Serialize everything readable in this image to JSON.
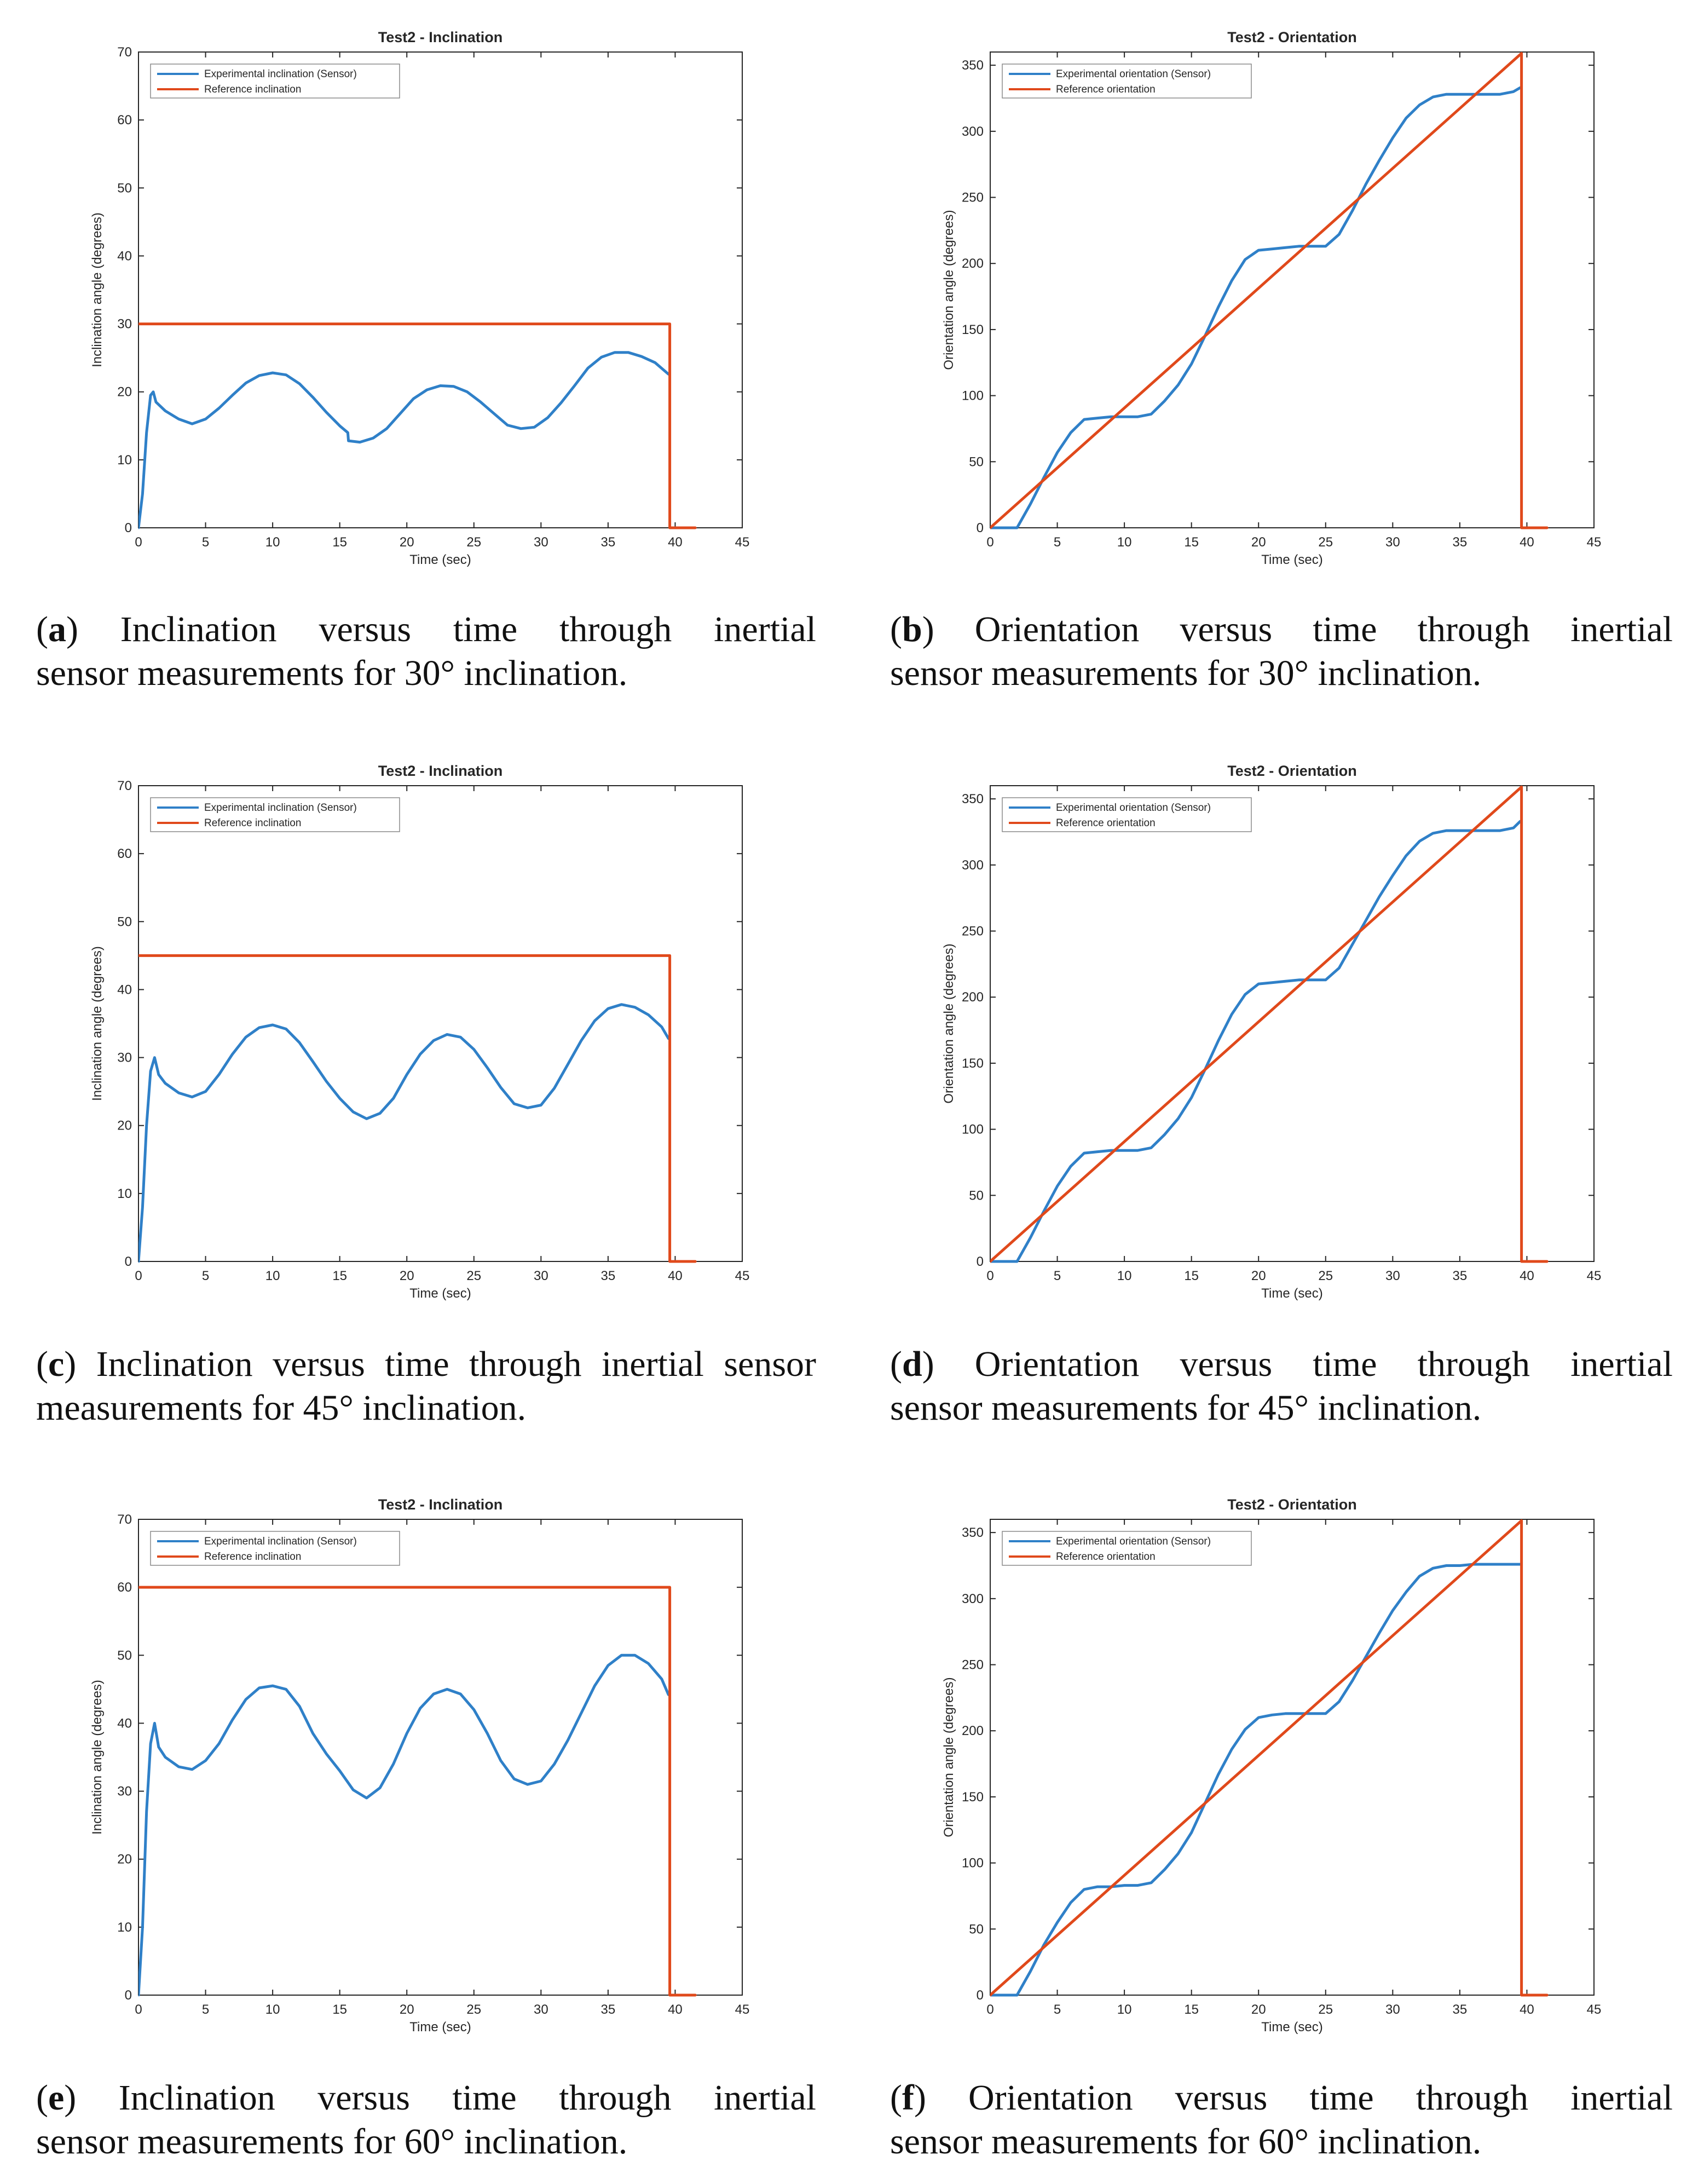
{
  "colors": {
    "experimental": "#2f80c8",
    "reference": "#e0491b",
    "axis": "#262626"
  },
  "panels": [
    {
      "caption": {
        "letter": "a",
        "line1": "Inclination versus time through inertial",
        "line2": "sensor measurements for 30° inclination."
      },
      "chart_data": {
        "type": "line",
        "title": "Test2 - Inclination",
        "xlabel": "Time (sec)",
        "ylabel": "Inclination angle (degrees)",
        "xlim": [
          0,
          45
        ],
        "ylim": [
          0,
          70
        ],
        "xticks": [
          0,
          5,
          10,
          15,
          20,
          25,
          30,
          35,
          40,
          45
        ],
        "yticks": [
          0,
          10,
          20,
          30,
          40,
          50,
          60,
          70
        ],
        "legend": "top-left",
        "series": [
          {
            "name": "Experimental inclination (Sensor)",
            "color_key": "experimental",
            "x": [
              0,
              0.3,
              0.6,
              0.9,
              1.1,
              1.3,
              2,
              3,
              4,
              5,
              6,
              7,
              8,
              9,
              10,
              11,
              12,
              13,
              14,
              15,
              15.6,
              15.65,
              16.5,
              17.5,
              18.5,
              19.5,
              20.5,
              21.5,
              22.5,
              23.5,
              24.5,
              25.5,
              26.5,
              27.5,
              28.5,
              29.5,
              30.5,
              31.5,
              32.5,
              33.5,
              34.5,
              35.5,
              36.5,
              37.5,
              38.5,
              39.5
            ],
            "y": [
              0,
              5,
              14,
              19.5,
              20,
              18.5,
              17.2,
              16,
              15.3,
              16,
              17.6,
              19.5,
              21.3,
              22.4,
              22.8,
              22.5,
              21.2,
              19.2,
              17,
              15,
              14,
              12.8,
              12.6,
              13.2,
              14.6,
              16.8,
              19,
              20.3,
              20.9,
              20.8,
              20,
              18.5,
              16.8,
              15.1,
              14.6,
              14.8,
              16.2,
              18.4,
              20.9,
              23.5,
              25.1,
              25.8,
              25.8,
              25.2,
              24.3,
              22.6
            ]
          },
          {
            "name": "Reference inclination",
            "color_key": "reference",
            "x": [
              0,
              39.6,
              39.6,
              41.5
            ],
            "y": [
              30,
              30,
              0,
              0
            ]
          }
        ]
      }
    },
    {
      "caption": {
        "letter": "b",
        "line1": "Orientation versus time through inertial",
        "line2": "sensor measurements for 30° inclination."
      },
      "chart_data": {
        "type": "line",
        "title": "Test2 - Orientation",
        "xlabel": "Time (sec)",
        "ylabel": "Orientation angle (degrees)",
        "xlim": [
          0,
          45
        ],
        "ylim": [
          0,
          360
        ],
        "xticks": [
          0,
          5,
          10,
          15,
          20,
          25,
          30,
          35,
          40,
          45
        ],
        "yticks": [
          0,
          50,
          100,
          150,
          200,
          250,
          300,
          350
        ],
        "legend": "top-left",
        "series": [
          {
            "name": "Experimental orientation (Sensor)",
            "color_key": "experimental",
            "x": [
              0,
              2,
              3,
              4,
              5,
              6,
              7,
              8,
              9,
              10,
              11,
              12,
              13,
              14,
              15,
              16,
              17,
              18,
              19,
              20,
              21,
              22,
              23,
              24,
              25,
              26,
              27,
              28,
              29,
              30,
              31,
              32,
              33,
              34,
              35,
              36,
              37,
              38,
              39,
              39.5
            ],
            "y": [
              0,
              0,
              18,
              38,
              57,
              72,
              82,
              83,
              84,
              84,
              84,
              86,
              96,
              108,
              124,
              145,
              167,
              187,
              203,
              210,
              211,
              212,
              213,
              213,
              213,
              222,
              240,
              260,
              278,
              295,
              310,
              320,
              326,
              328,
              328,
              328,
              328,
              328,
              330,
              333
            ]
          },
          {
            "name": "Reference orientation",
            "color_key": "reference",
            "x": [
              0,
              39.6,
              39.6,
              41.5
            ],
            "y": [
              0,
              359,
              0,
              0
            ]
          }
        ]
      }
    },
    {
      "caption": {
        "letter": "c",
        "line1": "Inclination versus time through inertial sensor",
        "line2": "measurements for 45° inclination."
      },
      "chart_data": {
        "type": "line",
        "title": "Test2 - Inclination",
        "xlabel": "Time (sec)",
        "ylabel": "Inclination angle (degrees)",
        "xlim": [
          0,
          45
        ],
        "ylim": [
          0,
          70
        ],
        "xticks": [
          0,
          5,
          10,
          15,
          20,
          25,
          30,
          35,
          40,
          45
        ],
        "yticks": [
          0,
          10,
          20,
          30,
          40,
          50,
          60,
          70
        ],
        "legend": "top-left",
        "series": [
          {
            "name": "Experimental inclination (Sensor)",
            "color_key": "experimental",
            "x": [
              0,
              0.3,
              0.6,
              0.9,
              1.2,
              1.5,
              2,
              3,
              4,
              5,
              6,
              7,
              8,
              9,
              10,
              11,
              12,
              13,
              14,
              15,
              16,
              17,
              18,
              19,
              20,
              21,
              22,
              23,
              24,
              25,
              26,
              27,
              28,
              29,
              30,
              31,
              32,
              33,
              34,
              35,
              36,
              37,
              38,
              39,
              39.5
            ],
            "y": [
              0,
              8,
              20,
              28,
              30,
              27.5,
              26.2,
              24.8,
              24.2,
              25,
              27.5,
              30.5,
              33,
              34.4,
              34.8,
              34.2,
              32.2,
              29.4,
              26.5,
              24,
              22,
              21,
              21.8,
              24,
              27.5,
              30.5,
              32.5,
              33.4,
              33,
              31.2,
              28.5,
              25.6,
              23.2,
              22.6,
              23,
              25.5,
              29,
              32.5,
              35.4,
              37.2,
              37.8,
              37.4,
              36.3,
              34.5,
              32.8
            ]
          },
          {
            "name": "Reference inclination",
            "color_key": "reference",
            "x": [
              0,
              39.6,
              39.6,
              41.5
            ],
            "y": [
              45,
              45,
              0,
              0
            ]
          }
        ]
      }
    },
    {
      "caption": {
        "letter": "d",
        "line1": "Orientation versus time through inertial",
        "line2": "sensor measurements for 45° inclination."
      },
      "chart_data": {
        "type": "line",
        "title": "Test2 - Orientation",
        "xlabel": "Time (sec)",
        "ylabel": "Orientation angle (degrees)",
        "xlim": [
          0,
          45
        ],
        "ylim": [
          0,
          360
        ],
        "xticks": [
          0,
          5,
          10,
          15,
          20,
          25,
          30,
          35,
          40,
          45
        ],
        "yticks": [
          0,
          50,
          100,
          150,
          200,
          250,
          300,
          350
        ],
        "legend": "top-left",
        "series": [
          {
            "name": "Experimental orientation (Sensor)",
            "color_key": "experimental",
            "x": [
              0,
              2,
              3,
              4,
              5,
              6,
              7,
              8,
              9,
              10,
              11,
              12,
              13,
              14,
              15,
              16,
              17,
              18,
              19,
              20,
              21,
              22,
              23,
              24,
              25,
              26,
              27,
              28,
              29,
              30,
              31,
              32,
              33,
              34,
              35,
              36,
              37,
              38,
              39,
              39.5
            ],
            "y": [
              0,
              0,
              18,
              38,
              57,
              72,
              82,
              83,
              84,
              84,
              84,
              86,
              96,
              108,
              124,
              145,
              167,
              187,
              202,
              210,
              211,
              212,
              213,
              213,
              213,
              222,
              240,
              258,
              276,
              292,
              307,
              318,
              324,
              326,
              326,
              326,
              326,
              326,
              328,
              333
            ]
          },
          {
            "name": "Reference orientation",
            "color_key": "reference",
            "x": [
              0,
              39.6,
              39.6,
              41.5
            ],
            "y": [
              0,
              359,
              0,
              0
            ]
          }
        ]
      }
    },
    {
      "caption": {
        "letter": "e",
        "line1": "Inclination versus time through inertial",
        "line2": "sensor measurements for 60° inclination."
      },
      "chart_data": {
        "type": "line",
        "title": "Test2 - Inclination",
        "xlabel": "Time (sec)",
        "ylabel": "Inclination angle (degrees)",
        "xlim": [
          0,
          45
        ],
        "ylim": [
          0,
          70
        ],
        "xticks": [
          0,
          5,
          10,
          15,
          20,
          25,
          30,
          35,
          40,
          45
        ],
        "yticks": [
          0,
          10,
          20,
          30,
          40,
          50,
          60,
          70
        ],
        "legend": "top-left",
        "series": [
          {
            "name": "Experimental inclination (Sensor)",
            "color_key": "experimental",
            "x": [
              0,
              0.3,
              0.6,
              0.9,
              1.2,
              1.5,
              2,
              3,
              4,
              5,
              6,
              7,
              8,
              9,
              10,
              11,
              12,
              13,
              14,
              15,
              16,
              17,
              18,
              19,
              20,
              21,
              22,
              23,
              24,
              25,
              26,
              27,
              28,
              29,
              30,
              31,
              32,
              33,
              34,
              35,
              36,
              37,
              38,
              39,
              39.5
            ],
            "y": [
              0,
              10,
              27,
              37,
              40,
              36.5,
              35,
              33.6,
              33.2,
              34.5,
              37,
              40.5,
              43.5,
              45.2,
              45.5,
              45,
              42.5,
              38.5,
              35.5,
              33,
              30.2,
              29,
              30.5,
              34,
              38.5,
              42.2,
              44.3,
              45,
              44.3,
              42,
              38.5,
              34.5,
              31.8,
              31,
              31.5,
              34,
              37.5,
              41.5,
              45.5,
              48.5,
              50,
              50,
              48.8,
              46.5,
              44.2
            ]
          },
          {
            "name": "Reference inclination",
            "color_key": "reference",
            "x": [
              0,
              39.6,
              39.6,
              41.5
            ],
            "y": [
              60,
              60,
              0,
              0
            ]
          }
        ]
      }
    },
    {
      "caption": {
        "letter": "f",
        "line1": "Orientation versus time through inertial",
        "line2": "sensor measurements for 60° inclination."
      },
      "chart_data": {
        "type": "line",
        "title": "Test2 - Orientation",
        "xlabel": "Time (sec)",
        "ylabel": "Orientation angle (degrees)",
        "xlim": [
          0,
          45
        ],
        "ylim": [
          0,
          360
        ],
        "xticks": [
          0,
          5,
          10,
          15,
          20,
          25,
          30,
          35,
          40,
          45
        ],
        "yticks": [
          0,
          50,
          100,
          150,
          200,
          250,
          300,
          350
        ],
        "legend": "top-left",
        "series": [
          {
            "name": "Experimental orientation (Sensor)",
            "color_key": "experimental",
            "x": [
              0,
              2,
              3,
              4,
              5,
              6,
              7,
              8,
              9,
              10,
              11,
              12,
              13,
              14,
              15,
              16,
              17,
              18,
              19,
              20,
              21,
              22,
              23,
              24,
              25,
              26,
              27,
              28,
              29,
              30,
              31,
              32,
              33,
              34,
              35,
              36,
              37,
              38,
              39,
              39.5
            ],
            "y": [
              0,
              0,
              18,
              38,
              55,
              70,
              80,
              82,
              82,
              83,
              83,
              85,
              95,
              107,
              123,
              145,
              167,
              186,
              201,
              210,
              212,
              213,
              213,
              213,
              213,
              222,
              238,
              256,
              274,
              291,
              305,
              317,
              323,
              325,
              325,
              326,
              326,
              326,
              326,
              326
            ]
          },
          {
            "name": "Reference orientation",
            "color_key": "reference",
            "x": [
              0,
              39.6,
              39.6,
              41.5
            ],
            "y": [
              0,
              359,
              0,
              0
            ]
          }
        ]
      }
    }
  ]
}
